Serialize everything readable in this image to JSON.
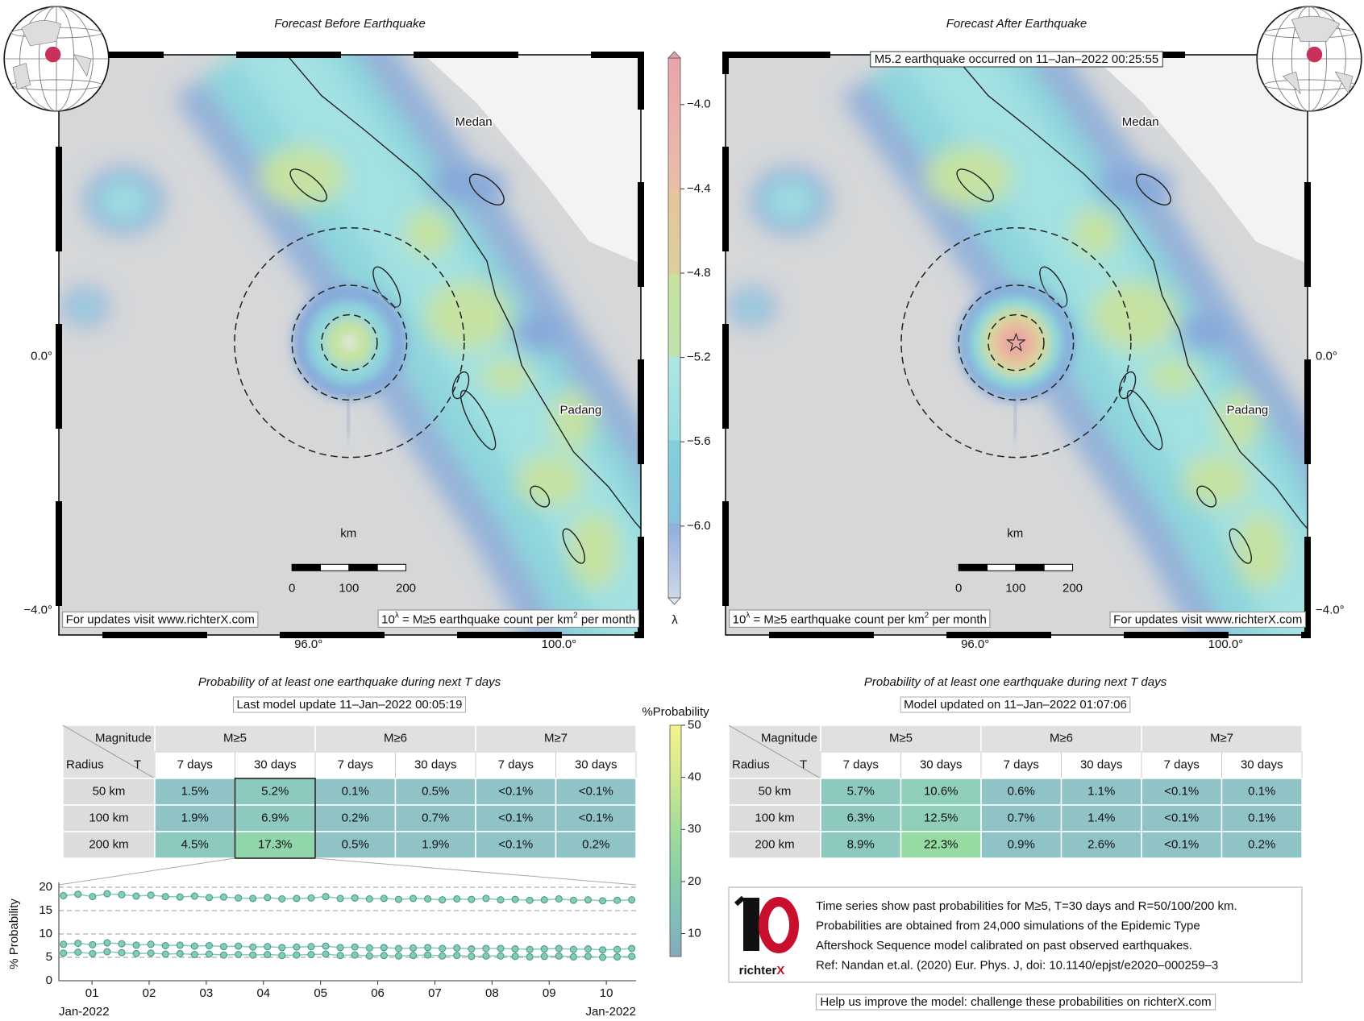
{
  "maps": [
    {
      "title": "Forecast Before Earthquake",
      "cities": [
        "Medan",
        "Padang"
      ],
      "lat_labels": [
        "0.0°",
        "−4.0°"
      ],
      "lon_labels": [
        "96.0°",
        "100.0°"
      ],
      "scale": {
        "unit": "km",
        "labels": [
          "0",
          "100",
          "200"
        ]
      },
      "notes": {
        "updates": "For updates visit www.richterX.com",
        "lambda": [
          "10",
          "λ",
          " = M≥5 earthquake count per km",
          "2",
          " per month"
        ]
      }
    },
    {
      "title": "Forecast After Earthquake",
      "annotation": "M5.2 earthquake occurred on 11–Jan–2022 00:25:55",
      "cities": [
        "Medan",
        "Padang"
      ],
      "lat_labels": [
        "0.0°",
        "−4.0°"
      ],
      "lon_labels": [
        "96.0°",
        "100.0°"
      ],
      "scale": {
        "unit": "km",
        "labels": [
          "0",
          "100",
          "200"
        ]
      },
      "notes": {
        "updates": "For updates visit www.richterX.com",
        "lambda": [
          "10",
          "λ",
          " = M≥5 earthquake count per km",
          "2",
          " per month"
        ]
      }
    }
  ],
  "lambda_colorbar": {
    "label": "λ",
    "lim": [
      -6.36,
      -3.76
    ],
    "ticks": [
      {
        "value": -4.0,
        "label": "−4.0"
      },
      {
        "value": -4.4,
        "label": "−4.4"
      },
      {
        "value": -4.8,
        "label": "−4.8"
      },
      {
        "value": -5.2,
        "label": "−5.2"
      },
      {
        "value": -5.6,
        "label": "−5.6"
      },
      {
        "value": -6.0,
        "label": "−6.0"
      }
    ]
  },
  "probability_colorbar": {
    "label": "%Probability",
    "lim": [
      5.6,
      50
    ],
    "ticks": [
      10,
      20,
      30,
      40,
      50
    ]
  },
  "tables": [
    {
      "title": "Probability of at least one earthquake during next T days",
      "subtitle": "Last model update 11–Jan–2022 00:05:19",
      "corner": [
        "Magnitude",
        "Radius",
        "T"
      ],
      "magnitudes": [
        "M≥5",
        "M≥6",
        "M≥7"
      ],
      "periods": [
        "7 days",
        "30 days"
      ],
      "rows": [
        {
          "label": "50 km",
          "cells": [
            "1.5%",
            "5.2%",
            "0.1%",
            "0.5%",
            "<0.1%",
            "<0.1%"
          ],
          "colors": [
            "#8fc3c5",
            "#8ec9c0",
            "#8fc3c5",
            "#8fc3c5",
            "#8fc3c5",
            "#8fc3c5"
          ]
        },
        {
          "label": "100 km",
          "cells": [
            "1.9%",
            "6.9%",
            "0.2%",
            "0.7%",
            "<0.1%",
            "<0.1%"
          ],
          "colors": [
            "#8fc3c5",
            "#8ec9c0",
            "#8fc3c5",
            "#8fc3c5",
            "#8fc3c5",
            "#8fc3c5"
          ]
        },
        {
          "label": "200 km",
          "cells": [
            "4.5%",
            "17.3%",
            "0.5%",
            "1.9%",
            "<0.1%",
            "0.2%"
          ],
          "colors": [
            "#8ec9c0",
            "#90d6aa",
            "#8fc3c5",
            "#8fc3c5",
            "#8fc3c5",
            "#8fc3c5"
          ]
        }
      ]
    },
    {
      "title": "Probability of at least one earthquake during next T days",
      "subtitle": "Model updated on 11–Jan–2022 01:07:06",
      "corner": [
        "Magnitude",
        "Radius",
        "T"
      ],
      "magnitudes": [
        "M≥5",
        "M≥6",
        "M≥7"
      ],
      "periods": [
        "7 days",
        "30 days"
      ],
      "rows": [
        {
          "label": "50 km",
          "cells": [
            "5.7%",
            "10.6%",
            "0.6%",
            "1.1%",
            "<0.1%",
            "0.1%"
          ],
          "colors": [
            "#8ec9c0",
            "#8fcfb8",
            "#8fc3c5",
            "#8fc3c5",
            "#8fc3c5",
            "#8fc3c5"
          ]
        },
        {
          "label": "100 km",
          "cells": [
            "6.3%",
            "12.5%",
            "0.7%",
            "1.4%",
            "<0.1%",
            "0.1%"
          ],
          "colors": [
            "#8ec9c0",
            "#8fcfb8",
            "#8fc3c5",
            "#8fc3c5",
            "#8fc3c5",
            "#8fc3c5"
          ]
        },
        {
          "label": "200 km",
          "cells": [
            "8.9%",
            "22.3%",
            "0.9%",
            "2.6%",
            "<0.1%",
            "0.2%"
          ],
          "colors": [
            "#8ec9c0",
            "#96dba2",
            "#8fc3c5",
            "#8fc3c5",
            "#8fc3c5",
            "#8fc3c5"
          ]
        }
      ]
    }
  ],
  "chart_data": {
    "type": "line",
    "ylabel": "% Probability",
    "x_edge_labels": [
      "Jan-2022",
      "Jan-2022"
    ],
    "x": [
      0.5,
      0.755,
      1.01,
      1.265,
      1.52,
      1.775,
      2.03,
      2.285,
      2.54,
      2.795,
      3.05,
      3.305,
      3.56,
      3.815,
      4.07,
      4.325,
      4.58,
      4.835,
      5.09,
      5.345,
      5.6,
      5.855,
      6.11,
      6.365,
      6.62,
      6.875,
      7.13,
      7.385,
      7.64,
      7.895,
      8.15,
      8.405,
      8.66,
      8.915,
      9.17,
      9.425,
      9.68,
      9.935,
      10.19,
      10.445
    ],
    "series": [
      {
        "color": "#7fcfb6",
        "values": [
          18.2,
          18.5,
          18.0,
          18.6,
          18.4,
          18.1,
          18.3,
          18.0,
          17.9,
          18.1,
          17.8,
          17.9,
          17.7,
          17.6,
          17.8,
          17.5,
          17.6,
          17.7,
          18.0,
          17.6,
          17.7,
          17.5,
          17.6,
          17.4,
          17.6,
          17.5,
          17.3,
          17.5,
          17.4,
          17.6,
          17.3,
          17.4,
          17.2,
          17.3,
          17.5,
          17.2,
          17.3,
          17.1,
          17.2,
          17.3
        ]
      },
      {
        "color": "#7fcfb6",
        "values": [
          7.8,
          8.0,
          7.7,
          8.1,
          7.9,
          7.6,
          7.8,
          7.5,
          7.6,
          7.4,
          7.5,
          7.3,
          7.4,
          7.2,
          7.3,
          7.1,
          7.2,
          7.3,
          7.4,
          7.1,
          7.2,
          7.0,
          7.1,
          6.9,
          7.0,
          7.1,
          6.9,
          7.0,
          6.8,
          6.9,
          6.9,
          6.8,
          6.7,
          6.8,
          6.9,
          6.7,
          6.8,
          6.6,
          6.7,
          6.9
        ]
      },
      {
        "color": "#7fcfb6",
        "values": [
          5.9,
          6.1,
          5.8,
          6.2,
          6.0,
          5.8,
          5.9,
          5.7,
          5.8,
          5.6,
          5.7,
          5.5,
          5.6,
          5.5,
          5.6,
          5.4,
          5.5,
          5.6,
          5.7,
          5.4,
          5.5,
          5.3,
          5.4,
          5.3,
          5.4,
          5.5,
          5.3,
          5.4,
          5.2,
          5.3,
          5.3,
          5.2,
          5.1,
          5.2,
          5.3,
          5.1,
          5.2,
          5.0,
          5.1,
          5.2
        ]
      }
    ],
    "xlim": [
      0.42,
      10.52
    ],
    "xticks": [
      {
        "value": 1,
        "label": "01"
      },
      {
        "value": 2,
        "label": "02"
      },
      {
        "value": 3,
        "label": "03"
      },
      {
        "value": 4,
        "label": "04"
      },
      {
        "value": 5,
        "label": "05"
      },
      {
        "value": 6,
        "label": "06"
      },
      {
        "value": 7,
        "label": "07"
      },
      {
        "value": 8,
        "label": "08"
      },
      {
        "value": 9,
        "label": "09"
      },
      {
        "value": 10,
        "label": "10"
      }
    ],
    "ylim": [
      0,
      20
    ],
    "yticks": [
      0,
      5,
      10,
      15,
      20
    ],
    "grid": true
  },
  "info": {
    "logo": [
      "richter",
      "X"
    ],
    "lines": [
      "Time series show past probabilities for M≥5, T=30 days and R=50/100/200 km.",
      "Probabilities are obtained from 24,000 simulations of the Epidemic Type",
      "Aftershock Sequence model calibrated on past observed earthquakes.",
      "Ref: Nandan et.al. (2020) Eur. Phys. J, doi: 10.1140/epjst/e2020–000259–3"
    ],
    "footer": "Help us improve the model: challenge these probabilities on richterX.com"
  }
}
